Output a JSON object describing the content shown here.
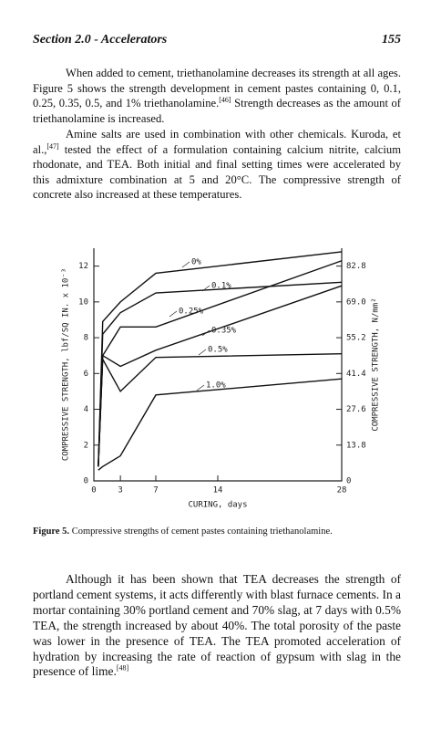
{
  "header": {
    "section": "Section 2.0 - Accelerators",
    "page": "155"
  },
  "paragraphs": [
    {
      "text_before": "When added to cement, triethanolamine decreases its strength at all ages. Figure 5 shows the strength development in cement pastes containing 0, 0.1, 0.25, 0.35, 0.5, and 1% triethanolamine.",
      "reference": "[46]",
      "text_after": " Strength decreases as the amount of triethanolamine is increased."
    },
    {
      "text_before": "Amine salts are used in combination with other chemicals. Kuroda, et al.,",
      "reference": "[47]",
      "text_after": " tested the effect of a formulation containing calcium nitrite, calcium rhodonate, and TEA. Both initial and final setting times were accelerated by this admixture combination at 5 and 20°C. The compressive strength of concrete also increased at these temperatures."
    },
    {
      "text_before": "Although it has been shown that TEA decreases the strength of portland cement systems, it acts differently with blast furnace cements. In a mortar containing 30% portland cement and 70% slag, at 7 days with 0.5% TEA, the strength increased by about 40%. The total porosity of the paste was lower in the presence of TEA. The TEA promoted acceleration of hydration by increasing the rate of reaction of gypsum with slag in the presence of lime.",
      "reference": "[48]"
    }
  ],
  "caption": {
    "label": "Figure 5.",
    "text": " Compressive strengths of cement pastes containing triethanolamine."
  },
  "chart_data": {
    "type": "line",
    "x_label": "CURING, days",
    "y_label": "COMPRESSIVE STRENGTH, lbf/SQ IN. x 10⁻³",
    "y2_label": "COMPRESSIVE STRENGTH, N/mm²",
    "x": [
      0.5,
      1,
      3,
      7,
      28
    ],
    "xlim": [
      0,
      28
    ],
    "xticks": [
      0,
      3,
      7,
      14,
      28
    ],
    "ylim": [
      0,
      13
    ],
    "yticks": [
      0,
      2,
      4,
      6,
      8,
      10,
      12
    ],
    "y2lim": [
      0,
      89.7
    ],
    "y2ticks": [
      0,
      13.8,
      27.6,
      41.4,
      55.2,
      {
        "value": 69,
        "label": "69.0"
      },
      82.8
    ],
    "series": [
      {
        "name": "0%",
        "color": "#111111",
        "values": [
          0.8,
          8.9,
          10.0,
          11.6,
          12.8
        ]
      },
      {
        "name": "0.1%",
        "color": "#111111",
        "values": [
          0.8,
          8.2,
          9.4,
          10.5,
          11.1
        ]
      },
      {
        "name": "0.25%",
        "color": "#111111",
        "values": [
          0.8,
          7.0,
          8.6,
          8.6,
          12.3
        ]
      },
      {
        "name": "0.35%",
        "color": "#111111",
        "values": [
          0.8,
          7.0,
          6.4,
          7.3,
          10.9
        ]
      },
      {
        "name": "0.5%",
        "color": "#111111",
        "values": [
          0.8,
          6.8,
          5.0,
          6.9,
          7.1
        ]
      },
      {
        "name": "1.0%",
        "color": "#111111",
        "values": [
          0.6,
          0.8,
          1.4,
          4.8,
          5.7
        ]
      }
    ]
  }
}
